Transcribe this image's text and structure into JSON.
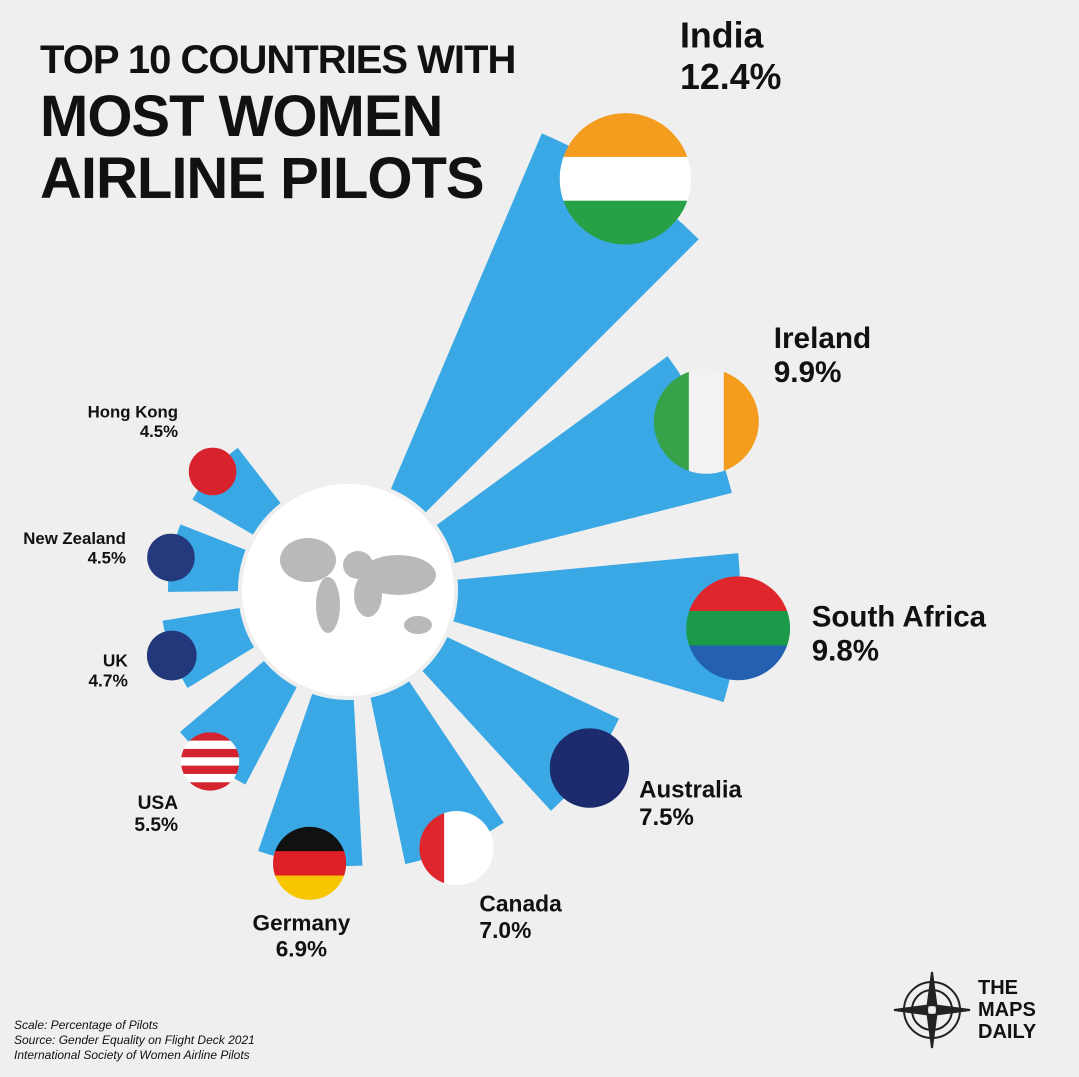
{
  "chart_data": {
    "type": "radial_bar",
    "title": "TOP 10 COUNTRIES WITH",
    "subtitle": "MOST WOMEN AIRLINE PILOTS",
    "categories": [
      "India",
      "Ireland",
      "South Africa",
      "Australia",
      "Canada",
      "Germany",
      "USA",
      "UK",
      "New Zealand",
      "Hong Kong"
    ],
    "values": [
      12.4,
      9.9,
      9.8,
      7.5,
      7.0,
      6.9,
      5.5,
      4.7,
      4.5,
      4.5
    ],
    "value_labels": [
      "12.4%",
      "9.9%",
      "9.8%",
      "7.5%",
      "7.0%",
      "6.9%",
      "5.5%",
      "4.7%",
      "4.5%",
      "4.5%"
    ],
    "color": "#3aa8e4",
    "notes": [
      "Scale: Percentage of Pilots",
      "Source: Gender Equality on Flight Deck 2021",
      "International Society of Women Airline Pilots"
    ],
    "brand": "THE MAPS DAILY"
  }
}
